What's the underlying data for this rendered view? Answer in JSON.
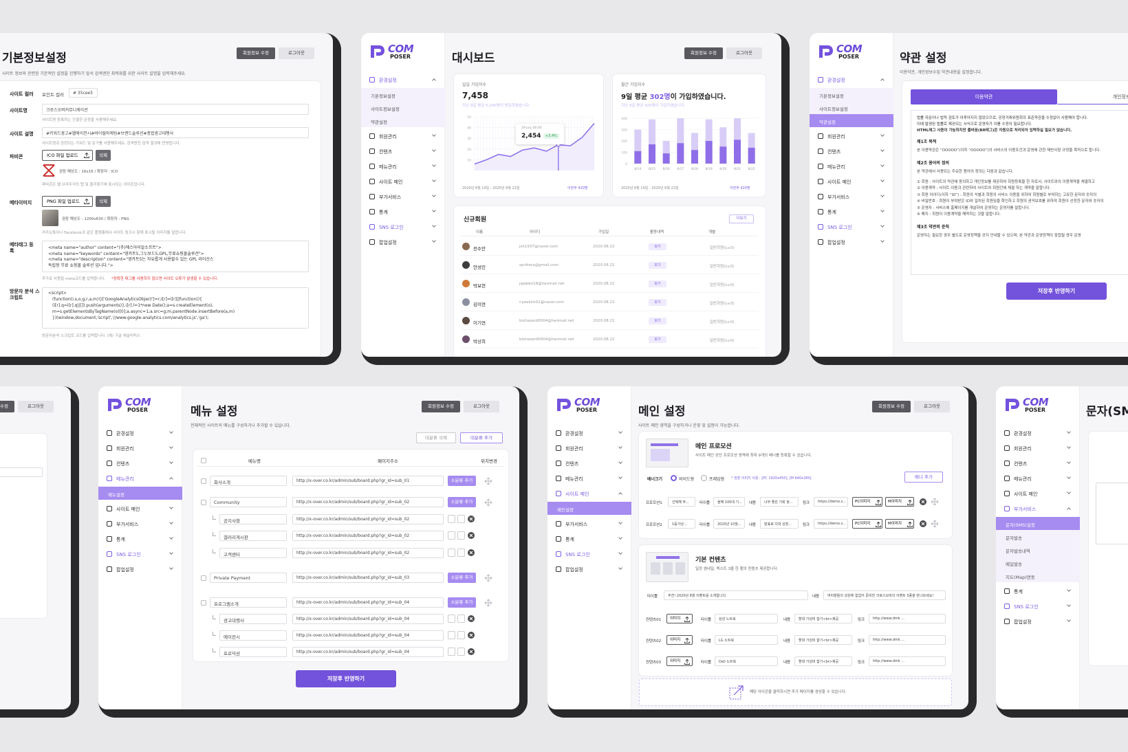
{
  "brand": {
    "top": "COM",
    "bottom": "POSER"
  },
  "header_buttons": {
    "edit": "회원정보 수정",
    "logout": "로그아웃"
  },
  "save_button": "저장후 반영하기",
  "sidebar_items": [
    {
      "label": "환경설정",
      "children": [
        "기본정보설정",
        "사이트정보설정",
        "약관설정"
      ]
    },
    {
      "label": "회원관리"
    },
    {
      "label": "컨텐츠"
    },
    {
      "label": "메뉴관리",
      "children": [
        "메뉴설정"
      ]
    },
    {
      "label": "사이트 메인",
      "children": [
        "메인설정"
      ]
    },
    {
      "label": "부가서비스",
      "children": [
        "문자(SMS)설정",
        "문자발송",
        "문자발송내역",
        "메일발송",
        "지도(Map)연동"
      ]
    },
    {
      "label": "통계"
    },
    {
      "label": "SNS 로그인",
      "accent": true
    },
    {
      "label": "팝업설정"
    }
  ],
  "basic_info": {
    "title": "기본정보설정",
    "description": "사이트 정보와 관련된 기본적인 설정을 진행하기 앞서 검색엔진 최적화를 위한 사이트 설명을 입력해주세요.",
    "site_color": {
      "label": "사이트 컬러",
      "option": "포인트 컬러",
      "value": "# 35cee5"
    },
    "site_name": {
      "label": "사이트명",
      "value": "크로스오버커뮤니케이션",
      "hint": "사이트명 등록하는 간결한 문장을 사용해주세요."
    },
    "site_description": {
      "label": "사이트 설명",
      "value": "#키워드광고#웹에이전시#바이럴마케팅#브랜드솔루션#종합광고대행사",
      "hint": "사이트명과 관련되는 키워드 및 문구를 사용해주세요. 검색엔진 검색 결과에 반영됩니다."
    },
    "favicon": {
      "label": "파비콘",
      "upload": "ICO 파일 업로드",
      "delete": "삭제",
      "spec": "권장 해상도 : 16x16 / 확장자 : ICO",
      "hint": "파비콘은 웹 브라우저의 탭 및 즐겨찾기에 표시되는 아이콘입니다."
    },
    "meta_image": {
      "label": "메타이미지",
      "upload": "PNG 파일 업로드",
      "delete": "삭제",
      "spec": "권장 해상도 : 1200x630 / 확장자 : PNG",
      "hint": "카카오톡이나 Facebook과 같은 플랫폼에서 사이트 링크시 함께 표시될 이미지를 말합니다."
    },
    "meta_tags": {
      "label": "메타태그 등록",
      "lines": [
        "<meta name=\"author\" content=\"(주)에스아이알소프트\">",
        "<meta name=\"keywords\" content=\"영카트5,그누보드5,GPL,무료쇼핑몰솔루션\">",
        "<meta name=\"description\" content=\"영카트5는 자유롭게 사용할수 있는 GPL 라이선스",
        "독립형 무료 쇼핑몰 솔루션 입니다.\">"
      ],
      "hint": "추가로 사용될 meta코드를 입력합니다.",
      "warning": "*정확한 태그를 사용하지 않으면 사이트 오류가 발생할 수 있습니다."
    },
    "analytics": {
      "label": "방문자 분석 스크립트",
      "lines": [
        "<script>",
        "(function(i,s,o,g,r,a,m){i['GoogleAnalyticsObject']=r;i[r]=i[r]||function(){",
        "(i[r].q=i[r].q||[]).push(arguments)},i[r].l=1*new Date();a=s.createElement(o),",
        "m=s.getElementsByTagName(o)[0];a.async=1;a.src=g;m.parentNode.insertBefore(a,m)",
        "})(window,document,'script','//www.google-analytics.com/analytics.js','ga');"
      ],
      "hint": "방문자분석 스크립트 코드를 입력합니다. (예) 구글 애널리틱스"
    }
  },
  "dashboard": {
    "sidebar": {
      "open": 0
    },
    "title": "대시보드",
    "daily": {
      "label": "일일 가입자수",
      "value": "7,458",
      "sub": "지난 9일 평균 5,240명이 방문하였습니다.",
      "tooltip": {
        "date": "29 July 00:00",
        "value": "2,454",
        "change": "+3.4%"
      },
      "line": {
        "type": "line",
        "values": [
          6,
          10,
          15,
          13,
          19,
          21,
          18,
          24,
          23,
          31,
          44
        ],
        "ylim": [
          0,
          50
        ],
        "yticks": [
          10,
          20,
          30,
          40,
          50
        ],
        "color": "#8f72ea",
        "highlight": 7
      },
      "period": "2020년 8월 14일 - 2020년 8월 22일",
      "week": "이번주 420명"
    },
    "monthly": {
      "label": "월간 가입자수",
      "headline": [
        "9일 평균 ",
        "302명",
        "이 가입하였습니다."
      ],
      "sub": "지난 9일 평균 420명이 가입하였습니다.",
      "bars": {
        "type": "bar",
        "categories": [
          "8/14",
          "8/15",
          "8/16",
          "8/17",
          "8/18",
          "8/19",
          "8/20",
          "8/21",
          "8/22"
        ],
        "series": [
          {
            "color": "#d8cdf7",
            "values": [
              300,
              390,
              200,
              400,
              270,
              390,
              320,
              400,
              270
            ]
          },
          {
            "color": "#8f6fe8",
            "values": [
              110,
              170,
              90,
              180,
              120,
              200,
              150,
              210,
              140
            ]
          }
        ],
        "ylim": [
          0,
          400
        ],
        "yticks": [
          0,
          100,
          200,
          300,
          400
        ]
      },
      "period": "2020년 8월 14일 - 2020년 8월 22일",
      "week": "이번주 420명"
    },
    "members": {
      "title": "신규회원",
      "more": "더보기",
      "headers": [
        "이름",
        "아이디",
        "가입일",
        "활동내역",
        "개별"
      ],
      "rows": [
        [
          "전수안",
          "jsh1937@naver.com",
          "2020.08.22",
          "보기",
          "일반회원(Lv.0)"
        ],
        [
          "안성민",
          "spribora@gmail.com",
          "2020.08.22",
          "보기",
          "일반회원(Lv.0)"
        ],
        [
          "박보현",
          "jajabbo18@hanmail.net",
          "2020.08.22",
          "보기",
          "일반회원(Lv.0)"
        ],
        [
          "김이연",
          "nyeekim02@naver.com",
          "2020.08.22",
          "보기",
          "일반회원(Lv.0)"
        ],
        [
          "이기연",
          "biohazard0004@hanmail.net",
          "2020.08.22",
          "보기",
          "일반회원(Lv.0)"
        ],
        [
          "박상희",
          "biohazard0004@hanmail.net",
          "2020.08.22",
          "보기",
          "일반회원(Lv.0)"
        ]
      ]
    }
  },
  "terms": {
    "sidebar": {
      "open": 0,
      "active": 2
    },
    "title": "약관 설정",
    "description": "이용약관, 개인정보수집 약관내용을 설정합니다.",
    "tabs": [
      "이용약관",
      "개인정보수집"
    ],
    "intro": [
      "법률 자문이나 법적 검토가 이루어지지 않았으므로, 공정거래위원회의 표준약관을 수정없이 사용해야 합니다.",
      "이에 발생된 법률로 제공되는 서식으로 운영자가 이를 수정이 필요합니다.",
      "HTML태그 사용이 가능하지만 줄바꿈(BR태그)은 자동으로 처리되어 입력하실 필요가 없습니다."
    ],
    "sections": [
      {
        "heading": "제1조 목적",
        "lines": [
          "본 이용약관은 “OOOOO”(이하 “OOOOO”)의 서비스의 이용조건과 운영에 관한 제반사항 규정을 목적으로 합니다."
        ]
      },
      {
        "heading": "제2조 용어의 정의",
        "lines": [
          "본 약관에서 사용되는 주요한 용어의 정의는 다음과 같습니다.",
          "① 회원 : 사이트의 약관에 동의하고 개인정보를 제공하여 회원등록을 한 자로서, 사이트와의 이용계약을 체결하고",
          "② 이용계약 : 사이트 이용과 관련하여 사이트와 회원간에 체결 하는 계약을 말합니다.",
          "③ 회원 아이디(이하 “ID”) : 회원의 식별과 회원의 서비스 이용을 위하여 회원별로 부여하는 고유한 문자와 숫자의",
          "④ 비밀번호 : 회원이 부여받은 ID와 일치된 회원임을 확인하고 회원의 권익보호를 위하여 회원이 선정한 문자와 숫자의",
          "⑤ 운영자 : 서비스에 홈페이지를 개설하여 운영하는 운영자를 말합니다.",
          "⑥ 해지 : 회원이 이용계약을 해약하는 것을 말합니다."
        ]
      },
      {
        "heading": "제3조 약관외 준칙",
        "lines": [
          "운영자는 필요한 경우 별도로 운영정책을 공지 안내할 수 있으며, 본 약관과 운영정책이 중첩될 경우 운영"
        ]
      }
    ]
  },
  "menu_settings": {
    "sidebar": {
      "open": 3,
      "active": 0
    },
    "title": "메뉴 설정",
    "description": "전체적인 사이트의 메뉴를 구성하거나 추가할 수 있습니다.",
    "delete_main": "대분류 삭제",
    "add_main": "대분류 추가",
    "add_sub": "소분류 추가",
    "headers": [
      "메뉴명",
      "페이지주소",
      "위치변경"
    ],
    "rows": [
      {
        "name": "회사소개",
        "url": "http://x-over.co.kr/admin/sub/board.php?gr_id=sub_01"
      },
      {
        "name": "Community",
        "url": "http://x-over.co.kr/admin/sub/board.php?gr_id=sub_02"
      },
      {
        "name": "공지사항",
        "url": "http://x-over.co.kr/admin/sub/board.php?gr_id=sub_02",
        "child": true
      },
      {
        "name": "갤러리게시판",
        "url": "http://x-over.co.kr/admin/sub/board.php?gr_id=sub_02",
        "child": true
      },
      {
        "name": "고객센터",
        "url": "http://x-over.co.kr/admin/sub/board.php?gr_id=sub_02",
        "child": true
      },
      {
        "name": "Private Payment",
        "url": "http://x-over.co.kr/admin/sub/board.php?gr_id=sub_03"
      },
      {
        "name": "프로그램소개",
        "url": "http://x-over.co.kr/admin/sub/board.php?gr_id=sub_04"
      },
      {
        "name": "광고대행사",
        "url": "http://x-over.co.kr/admin/sub/board.php?gr_id=sub_04",
        "child": true
      },
      {
        "name": "에이전시",
        "url": "http://x-over.co.kr/admin/sub/board.php?gr_id=sub_04",
        "child": true
      },
      {
        "name": "프로덕션",
        "url": "http://x-over.co.kr/admin/sub/board.php?gr_id=sub_04",
        "child": true
      }
    ]
  },
  "main_settings": {
    "sidebar": {
      "open": 4,
      "active": 0
    },
    "title": "메인 설정",
    "description": "사이트 메인 영역을 구성하거나 운영 및 설정이 가능합니다.",
    "fields": {
      "title": "타이틀",
      "content": "내용",
      "link": "링크",
      "pc": "PC이미지",
      "m": "M이미지",
      "image": "이미지"
    },
    "promotion": {
      "title": "메인 프로모션",
      "description": "사이트 메인 상단 프로모션 영역에 최대 9개의 배너를 등록할 수 있습니다.",
      "size_label": "배너크기",
      "options": [
        "와이드형",
        "프레임형"
      ],
      "note": "* 권장 이미지 사용 : [PC 1920x450], [M 640x280]",
      "add": "배너 추가",
      "rows": [
        {
          "label": "프로모션1",
          "select": "선택해 주...",
          "title": "올해 100대 기...",
          "content": "너무 좋은 기회 놓...",
          "link": "https://demo.s..."
        },
        {
          "label": "프로모션2",
          "select": "1등가냥...",
          "title": "2020년 10월...",
          "content": "발표로 다대 성장...",
          "link": "https://demo.s..."
        }
      ]
    },
    "contents": {
      "title": "기본 컨텐츠",
      "description": "일정 썸네일, 텍스트 3줄 한 행의 컨텐츠 제공합니다.",
      "headline_title": "추천! 2020년 8월 이벤트를 소개합니다.",
      "headline_content": "여러분들의 성원에 힘입어 준비한 크로스오버의 이벤트 5종을 만나보세요!",
      "rows": [
        {
          "label": "컨텐츠01",
          "title": "삼성 노트북",
          "content": "할대 가성비 합기<br>제공",
          "link": "http://www.dmk ..."
        },
        {
          "label": "컨텐츠02",
          "title": "LG 노트북",
          "content": "할대 가성비 합기<br>제공",
          "link": "http://www.dmk ..."
        },
        {
          "label": "컨텐츠03",
          "title": "Dell 노트북",
          "content": "할대 가성비 합기<br>제공",
          "link": "http://www.dmk ..."
        }
      ],
      "footer": "해당 아이콘을 클릭하시면 추가 페이지를 생성할 수 있습니다."
    }
  },
  "sms_settings": {
    "sidebar": {
      "open": 5,
      "active": 0
    },
    "title": "문자(SMS)설정"
  }
}
